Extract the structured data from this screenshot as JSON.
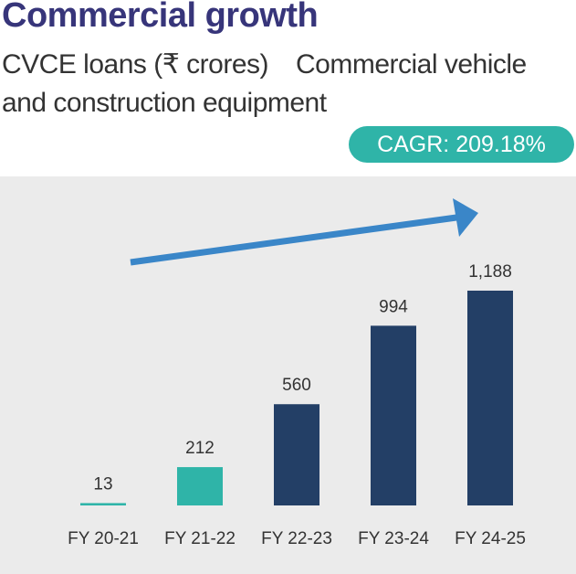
{
  "chart_data": {
    "type": "bar",
    "title": "Commercial growth",
    "subtitle": "CVCE loans (₹ crores)",
    "note": "Commercial vehicle and construction equipment",
    "badge": "CAGR: 209.18%",
    "categories": [
      "FY 20-21",
      "FY 21-22",
      "FY 22-23",
      "FY 23-24",
      "FY 24-25"
    ],
    "values": [
      13,
      212,
      560,
      994,
      1188
    ],
    "value_labels": [
      "13",
      "212",
      "560",
      "994",
      "1,188"
    ],
    "colors": [
      "#2fb4a8",
      "#2fb4a8",
      "#233f66",
      "#233f66",
      "#233f66"
    ]
  }
}
